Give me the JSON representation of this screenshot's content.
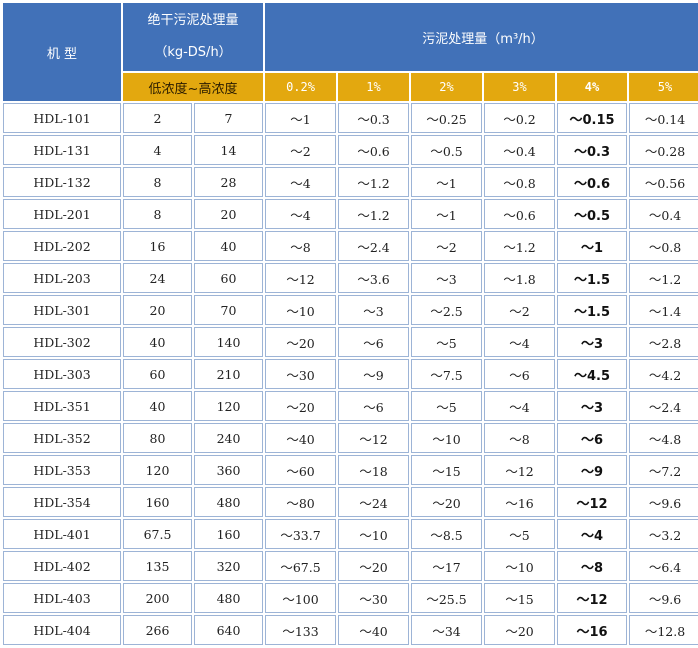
{
  "header": {
    "model": "机 型",
    "dry_line1": "绝干污泥处理量",
    "dry_line2": "（kg-DS/h）",
    "sludge": "污泥处理量（m³/h）",
    "conc_range": "低浓度~高浓度",
    "pcts": [
      "0.2%",
      "1%",
      "2%",
      "3%",
      "4%",
      "5%"
    ]
  },
  "rows": [
    {
      "model": "HDL-101",
      "low": "2",
      "high": "7",
      "p02": "～1",
      "p1": "～0.3",
      "p2": "～0.25",
      "p3": "～0.2",
      "p4": "～0.15",
      "p5": "～0.14"
    },
    {
      "model": "HDL-131",
      "low": "4",
      "high": "14",
      "p02": "～2",
      "p1": "～0.6",
      "p2": "～0.5",
      "p3": "～0.4",
      "p4": "～0.3",
      "p5": "～0.28"
    },
    {
      "model": "HDL-132",
      "low": "8",
      "high": "28",
      "p02": "～4",
      "p1": "～1.2",
      "p2": "～1",
      "p3": "～0.8",
      "p4": "～0.6",
      "p5": "～0.56"
    },
    {
      "model": "HDL-201",
      "low": "8",
      "high": "20",
      "p02": "～4",
      "p1": "～1.2",
      "p2": "～1",
      "p3": "～0.6",
      "p4": "～0.5",
      "p5": "～0.4"
    },
    {
      "model": "HDL-202",
      "low": "16",
      "high": "40",
      "p02": "～8",
      "p1": "～2.4",
      "p2": "～2",
      "p3": "～1.2",
      "p4": "～1",
      "p5": "～0.8"
    },
    {
      "model": "HDL-203",
      "low": "24",
      "high": "60",
      "p02": "～12",
      "p1": "～3.6",
      "p2": "～3",
      "p3": "～1.8",
      "p4": "～1.5",
      "p5": "～1.2"
    },
    {
      "model": "HDL-301",
      "low": "20",
      "high": "70",
      "p02": "～10",
      "p1": "～3",
      "p2": "～2.5",
      "p3": "～2",
      "p4": "～1.5",
      "p5": "～1.4"
    },
    {
      "model": "HDL-302",
      "low": "40",
      "high": "140",
      "p02": "～20",
      "p1": "～6",
      "p2": "～5",
      "p3": "～4",
      "p4": "～3",
      "p5": "～2.8"
    },
    {
      "model": "HDL-303",
      "low": "60",
      "high": "210",
      "p02": "～30",
      "p1": "～9",
      "p2": "～7.5",
      "p3": "～6",
      "p4": "～4.5",
      "p5": "～4.2"
    },
    {
      "model": "HDL-351",
      "low": "40",
      "high": "120",
      "p02": "～20",
      "p1": "～6",
      "p2": "～5",
      "p3": "～4",
      "p4": "～3",
      "p5": "～2.4"
    },
    {
      "model": "HDL-352",
      "low": "80",
      "high": "240",
      "p02": "～40",
      "p1": "～12",
      "p2": "～10",
      "p3": "～8",
      "p4": "～6",
      "p5": "～4.8"
    },
    {
      "model": "HDL-353",
      "low": "120",
      "high": "360",
      "p02": "～60",
      "p1": "～18",
      "p2": "～15",
      "p3": "～12",
      "p4": "～9",
      "p5": "～7.2"
    },
    {
      "model": "HDL-354",
      "low": "160",
      "high": "480",
      "p02": "～80",
      "p1": "～24",
      "p2": "～20",
      "p3": "～16",
      "p4": "～12",
      "p5": "～9.6"
    },
    {
      "model": "HDL-401",
      "low": "67.5",
      "high": "160",
      "p02": "～33.7",
      "p1": "～10",
      "p2": "～8.5",
      "p3": "～5",
      "p4": "～4",
      "p5": "～3.2"
    },
    {
      "model": "HDL-402",
      "low": "135",
      "high": "320",
      "p02": "～67.5",
      "p1": "～20",
      "p2": "～17",
      "p3": "～10",
      "p4": "～8",
      "p5": "～6.4"
    },
    {
      "model": "HDL-403",
      "low": "200",
      "high": "480",
      "p02": "～100",
      "p1": "～30",
      "p2": "～25.5",
      "p3": "～15",
      "p4": "～12",
      "p5": "～9.6"
    },
    {
      "model": "HDL-404",
      "low": "266",
      "high": "640",
      "p02": "～133",
      "p1": "～40",
      "p2": "～34",
      "p3": "～20",
      "p4": "～16",
      "p5": "～12.8"
    }
  ]
}
